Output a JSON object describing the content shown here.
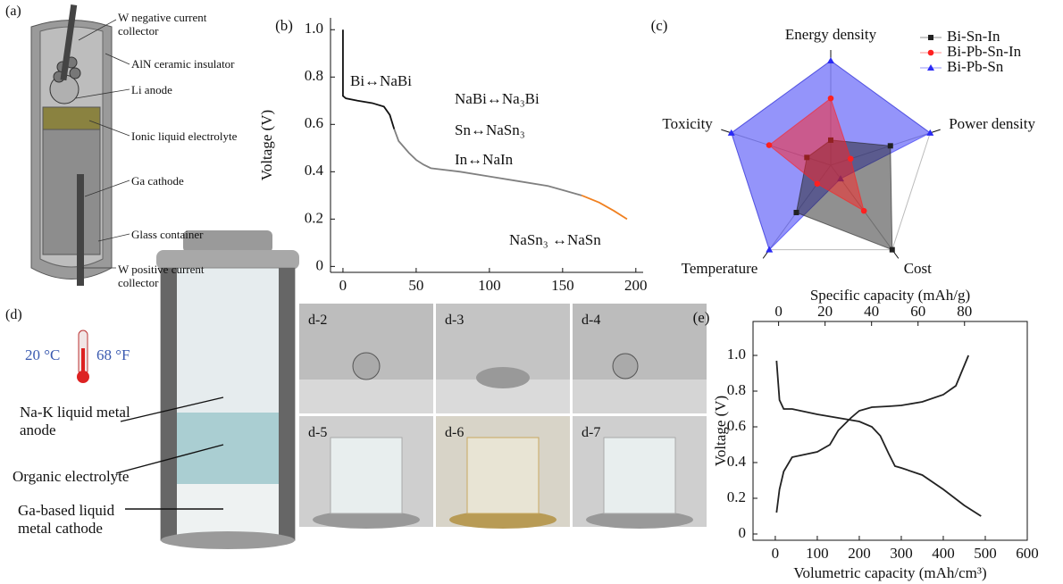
{
  "panels": {
    "a": {
      "label": "(a)",
      "callouts": [
        "W negative current collector",
        "AlN ceramic insulator",
        "Li anode",
        "Ionic liquid electrolyte",
        "Ga cathode",
        "Glass container",
        "W positive current collector"
      ]
    },
    "d": {
      "label": "(d)",
      "temperature_c": "20 °C",
      "temperature_f": "68 °F",
      "callouts": [
        "Na-K liquid metal anode",
        "Organic electrolyte",
        "Ga-based liquid metal cathode"
      ],
      "photos": [
        "d-2",
        "d-3",
        "d-4",
        "d-5",
        "d-6",
        "d-7"
      ]
    }
  },
  "chart_data": [
    {
      "type": "line",
      "panel_label": "(b)",
      "ylabel": "Voltage (V)",
      "xlim": [
        -8.5,
        205
      ],
      "xticks": [
        0,
        50,
        100,
        150,
        200
      ],
      "ylim": [
        -0.025,
        1.05
      ],
      "yticks": [
        0,
        0.2,
        0.4,
        0.6,
        0.8,
        {
          "value": 1,
          "label": "1.0"
        }
      ],
      "series": [
        {
          "color": "#111111",
          "x": [
            0,
            0,
            2,
            10,
            20,
            28,
            32,
            35
          ],
          "values": [
            1.0,
            0.72,
            0.71,
            0.7,
            0.69,
            0.675,
            0.64,
            0.58
          ]
        },
        {
          "color": "#808080",
          "x": [
            35,
            38,
            45,
            50,
            55,
            60,
            80,
            100,
            120,
            140,
            163
          ],
          "values": [
            0.58,
            0.53,
            0.48,
            0.45,
            0.43,
            0.415,
            0.4,
            0.38,
            0.36,
            0.34,
            0.3
          ]
        },
        {
          "color": "#f08020",
          "x": [
            163,
            175,
            185,
            194
          ],
          "values": [
            0.3,
            0.27,
            0.235,
            0.2
          ]
        }
      ],
      "annotations": [
        {
          "text": "Bi↔NaBi",
          "color": "#111111"
        },
        {
          "text": "NaBi↔Na₃Bi",
          "color": "#e8303a"
        },
        {
          "text": "Sn↔NaSn₃",
          "color": "#2020d0"
        },
        {
          "text": "In↔NaIn",
          "color": "#d020d0"
        },
        {
          "text": "NaSn₃ ↔NaSn",
          "color": "#f08020"
        }
      ]
    },
    {
      "type": "radar",
      "panel_label": "(c)",
      "axes": [
        "Energy density",
        "Power density",
        "Cost",
        "Temperature",
        "Toxicity"
      ],
      "rlim": [
        0,
        5
      ],
      "series": [
        {
          "name": "Bi-Sn-In",
          "color": "#222222",
          "marker": "square",
          "values": [
            1.2,
            3,
            5,
            2.8,
            1.2
          ]
        },
        {
          "name": "Bi-Pb-Sn-In",
          "color": "#ff2020",
          "marker": "circle",
          "values": [
            3.2,
            1,
            2.7,
            1.1,
            3.1
          ]
        },
        {
          "name": "Bi-Pb-Sn",
          "color": "#2a2af5",
          "marker": "triangle",
          "values": [
            5,
            5,
            0.8,
            5,
            5
          ]
        }
      ]
    },
    {
      "type": "line",
      "panel_label": "(e)",
      "ylabel": "Voltage (V)",
      "xlabel": "Volumetric capacity (mAh/cm³)",
      "xlim": [
        -53,
        600
      ],
      "xticks": [
        0,
        100,
        200,
        300,
        400,
        500,
        600
      ],
      "x2label": "Specific capacity (mAh/g)",
      "x2lim": [
        -11,
        107
      ],
      "x2ticks": [
        0,
        20,
        40,
        60,
        80
      ],
      "ylim": [
        -0.035,
        1.19
      ],
      "yticks": [
        0,
        0.2,
        0.4,
        0.6,
        0.8,
        {
          "value": 1,
          "label": "1.0"
        }
      ],
      "frame": true,
      "series": [
        {
          "color": "#222222",
          "x": [
            3,
            10,
            20,
            40,
            60,
            100,
            150,
            200,
            230,
            250,
            270,
            285,
            300,
            350,
            400,
            450,
            490
          ],
          "values": [
            0.97,
            0.75,
            0.7,
            0.7,
            0.69,
            0.67,
            0.65,
            0.63,
            0.6,
            0.55,
            0.45,
            0.38,
            0.37,
            0.33,
            0.25,
            0.16,
            0.1
          ]
        },
        {
          "color": "#222222",
          "x": [
            3,
            10,
            20,
            40,
            60,
            100,
            130,
            150,
            180,
            200,
            230,
            270,
            300,
            350,
            400,
            430,
            460
          ],
          "values": [
            0.12,
            0.25,
            0.35,
            0.43,
            0.44,
            0.46,
            0.5,
            0.58,
            0.65,
            0.69,
            0.71,
            0.715,
            0.72,
            0.74,
            0.78,
            0.83,
            1.0
          ]
        }
      ]
    }
  ]
}
